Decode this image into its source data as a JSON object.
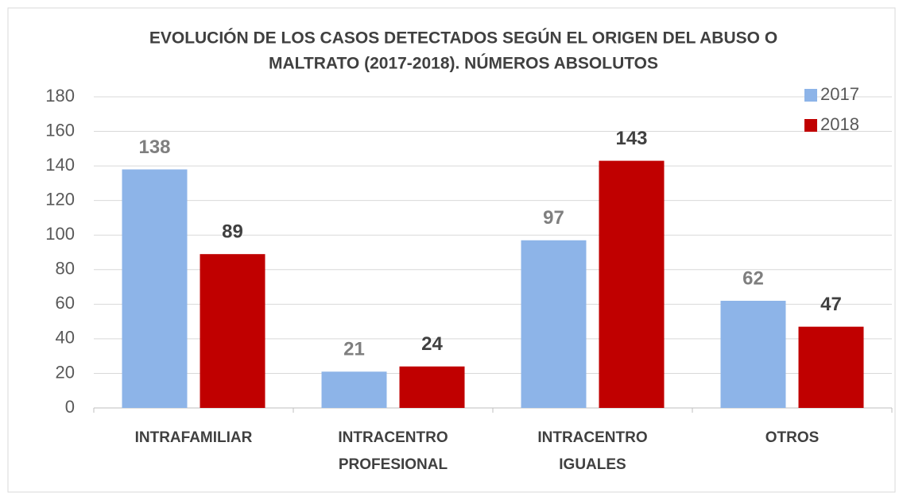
{
  "chart_data": {
    "type": "bar",
    "title": [
      "EVOLUCIÓN DE LOS CASOS DETECTADOS SEGÚN EL ORIGEN DEL ABUSO O",
      "MALTRATO (2017-2018). NÚMEROS ABSOLUTOS"
    ],
    "categories": [
      [
        "INTRAFAMILIAR"
      ],
      [
        "INTRACENTRO",
        "PROFESIONAL"
      ],
      [
        "INTRACENTRO",
        "IGUALES"
      ],
      [
        "OTROS"
      ]
    ],
    "series": [
      {
        "name": "2017",
        "color": "#8db4e8",
        "label_color": "#7f7f7f",
        "values": [
          138,
          21,
          97,
          62
        ]
      },
      {
        "name": "2018",
        "color": "#c00000",
        "label_color": "#404040",
        "values": [
          89,
          24,
          143,
          47
        ]
      }
    ],
    "ylim": [
      0,
      180
    ],
    "yticks": [
      0,
      20,
      40,
      60,
      80,
      100,
      120,
      140,
      160,
      180
    ],
    "grid": true,
    "legend": "top-right"
  }
}
